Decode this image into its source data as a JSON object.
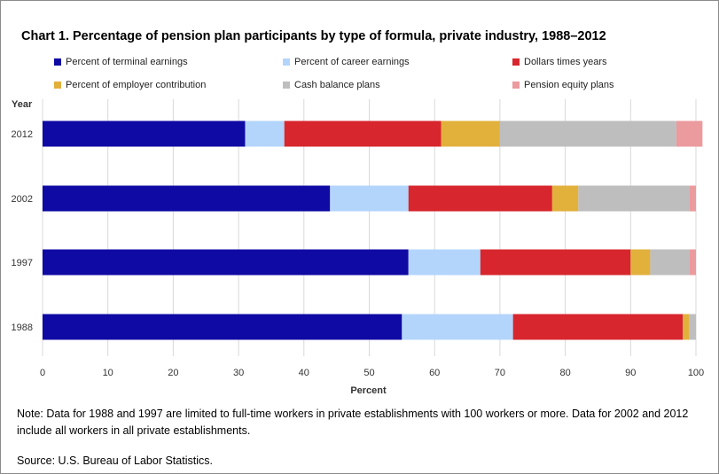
{
  "chart_data": {
    "type": "bar",
    "orientation": "horizontal",
    "stacked": true,
    "title": "Chart 1.  Percentage of pension plan participants by type of formula, private industry, 1988–2012",
    "xlabel": "Percent",
    "ylabel": "Year",
    "xlim": [
      0,
      100
    ],
    "xticks": [
      "0",
      "10",
      "20",
      "30",
      "40",
      "50",
      "60",
      "70",
      "80",
      "90",
      "100"
    ],
    "grid": true,
    "legend_position": "top",
    "categories": [
      "2012",
      "2002",
      "1997",
      "1988"
    ],
    "series": [
      {
        "name": "Percent of terminal earnings",
        "color": "#0f0aa3",
        "values": [
          31,
          44,
          56,
          55
        ]
      },
      {
        "name": "Percent of career earnings",
        "color": "#b3d5fc",
        "values": [
          6,
          12,
          11,
          17
        ]
      },
      {
        "name": "Dollars times years",
        "color": "#d7262d",
        "values": [
          24,
          22,
          23,
          26
        ]
      },
      {
        "name": "Percent of employer contribution",
        "color": "#e2b13c",
        "values": [
          9,
          4,
          3,
          1
        ]
      },
      {
        "name": "Cash balance plans",
        "color": "#bebebe",
        "values": [
          27,
          17,
          6,
          1
        ]
      },
      {
        "name": "Pension equity plans",
        "color": "#eb9a9e",
        "values": [
          4,
          1,
          1,
          0
        ]
      }
    ]
  },
  "note": "Note:  Data for 1988 and 1997 are limited to full-time workers in private establishments with 100 workers or more.  Data for 2002 and 2012 include all workers in all private establishments.",
  "source": "Source: U.S. Bureau of Labor Statistics."
}
